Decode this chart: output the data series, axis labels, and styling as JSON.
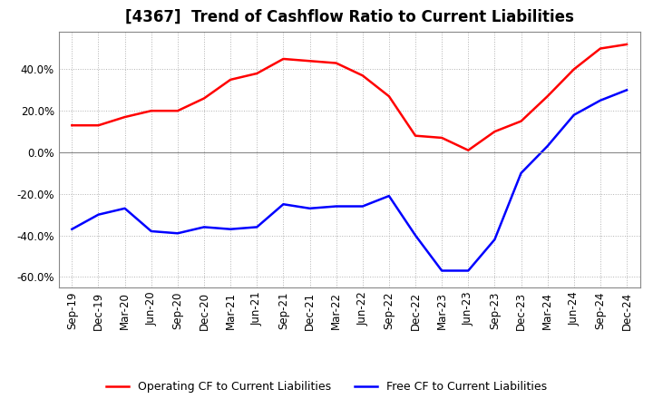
{
  "title": "[4367]  Trend of Cashflow Ratio to Current Liabilities",
  "x_labels": [
    "Sep-19",
    "Dec-19",
    "Mar-20",
    "Jun-20",
    "Sep-20",
    "Dec-20",
    "Mar-21",
    "Jun-21",
    "Sep-21",
    "Dec-21",
    "Mar-22",
    "Jun-22",
    "Sep-22",
    "Dec-22",
    "Mar-23",
    "Jun-23",
    "Sep-23",
    "Dec-23",
    "Mar-24",
    "Jun-24",
    "Sep-24",
    "Dec-24"
  ],
  "operating_cf": [
    0.13,
    0.13,
    0.17,
    0.2,
    0.2,
    0.26,
    0.35,
    0.38,
    0.45,
    0.44,
    0.43,
    0.37,
    0.27,
    0.08,
    0.07,
    0.01,
    0.1,
    0.15,
    0.27,
    0.4,
    0.5,
    0.52
  ],
  "free_cf": [
    -0.37,
    -0.3,
    -0.27,
    -0.38,
    -0.39,
    -0.36,
    -0.37,
    -0.36,
    -0.25,
    -0.27,
    -0.26,
    -0.26,
    -0.21,
    -0.4,
    -0.57,
    -0.57,
    -0.42,
    -0.1,
    0.03,
    0.18,
    0.25,
    0.3
  ],
  "ylim": [
    -0.65,
    0.58
  ],
  "yticks": [
    -0.6,
    -0.4,
    -0.2,
    0.0,
    0.2,
    0.4
  ],
  "operating_color": "#FF0000",
  "free_color": "#0000FF",
  "grid_color": "#AAAAAA",
  "background_color": "#FFFFFF",
  "title_fontsize": 12,
  "label_fontsize": 8.5,
  "legend_fontsize": 9,
  "line_width": 1.8
}
